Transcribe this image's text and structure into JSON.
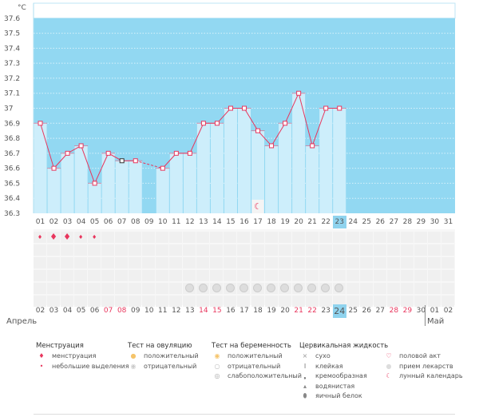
{
  "chart_data": {
    "type": "bar",
    "unit": "°C",
    "ylim": [
      36.3,
      37.7
    ],
    "yticks": [
      "37.6",
      "37.5",
      "37.4",
      "37.3",
      "37.2",
      "37.1",
      "37",
      "36.9",
      "36.8",
      "36.7",
      "36.6",
      "36.5",
      "36.4",
      "36.3"
    ],
    "categories": [
      "01",
      "02",
      "03",
      "04",
      "05",
      "06",
      "07",
      "08",
      "09",
      "10",
      "11",
      "12",
      "13",
      "14",
      "15",
      "16",
      "17",
      "18",
      "19",
      "20",
      "21",
      "22",
      "23",
      "24",
      "25",
      "26",
      "27",
      "28",
      "29",
      "30",
      "31"
    ],
    "series": [
      {
        "name": "temperature",
        "values": [
          36.9,
          36.6,
          36.7,
          36.75,
          36.5,
          36.7,
          36.65,
          36.65,
          null,
          36.6,
          36.7,
          36.7,
          36.9,
          36.9,
          37.0,
          37.0,
          36.85,
          36.75,
          36.9,
          37.1,
          36.75,
          37.0,
          37.0,
          null,
          null,
          null,
          null,
          null,
          null,
          null,
          null
        ]
      }
    ],
    "current_index": 22,
    "moon_index": 16,
    "colors": {
      "bar": "#cdeefb",
      "bg": "#92d8f2",
      "line": "#e8365d"
    }
  },
  "calendar": {
    "dates": [
      "02",
      "03",
      "04",
      "05",
      "06",
      "07",
      "08",
      "09",
      "10",
      "11",
      "12",
      "13",
      "14",
      "15",
      "16",
      "17",
      "18",
      "19",
      "20",
      "21",
      "22",
      "23",
      "24",
      "25",
      "26",
      "27",
      "28",
      "29",
      "30",
      "01",
      "02"
    ],
    "weekend": [
      "07",
      "08",
      "14",
      "15",
      "21",
      "22",
      "28",
      "29"
    ],
    "current_index": 22,
    "menstruation": [
      "small",
      "big",
      "big",
      "small",
      "small"
    ],
    "pills_from": 11,
    "pills_to": 22,
    "month1": "Апрель",
    "month2": "Май"
  },
  "legend": {
    "groups": [
      {
        "title": "Менструация",
        "items": [
          {
            "icon": "drop-big",
            "label": "менструация"
          },
          {
            "icon": "drop-small",
            "label": "небольшие выделения"
          }
        ]
      },
      {
        "title": "Тест на овуляцию",
        "items": [
          {
            "icon": "sun-positive",
            "label": "положительный"
          },
          {
            "icon": "sun-negative",
            "label": "отрицательный"
          }
        ]
      },
      {
        "title": "Тест на беременность",
        "items": [
          {
            "icon": "test-positive",
            "label": "положительный"
          },
          {
            "icon": "test-negative",
            "label": "отрицательный"
          },
          {
            "icon": "test-weak",
            "label": "слабоположительный"
          }
        ]
      },
      {
        "title": "Цервикальная жидкость",
        "items": [
          {
            "icon": "cross",
            "label": "сухо"
          },
          {
            "icon": "sticky",
            "label": "клейкая"
          },
          {
            "icon": "creamy",
            "label": "кремообразная"
          },
          {
            "icon": "watery",
            "label": "водянистая"
          },
          {
            "icon": "eggwhite",
            "label": "яичный белок"
          }
        ]
      },
      {
        "title": "",
        "items": [
          {
            "icon": "heart",
            "label": "половой акт"
          },
          {
            "icon": "pill",
            "label": "прием лекарств"
          },
          {
            "icon": "moon",
            "label": "лунный календарь"
          }
        ]
      }
    ]
  }
}
